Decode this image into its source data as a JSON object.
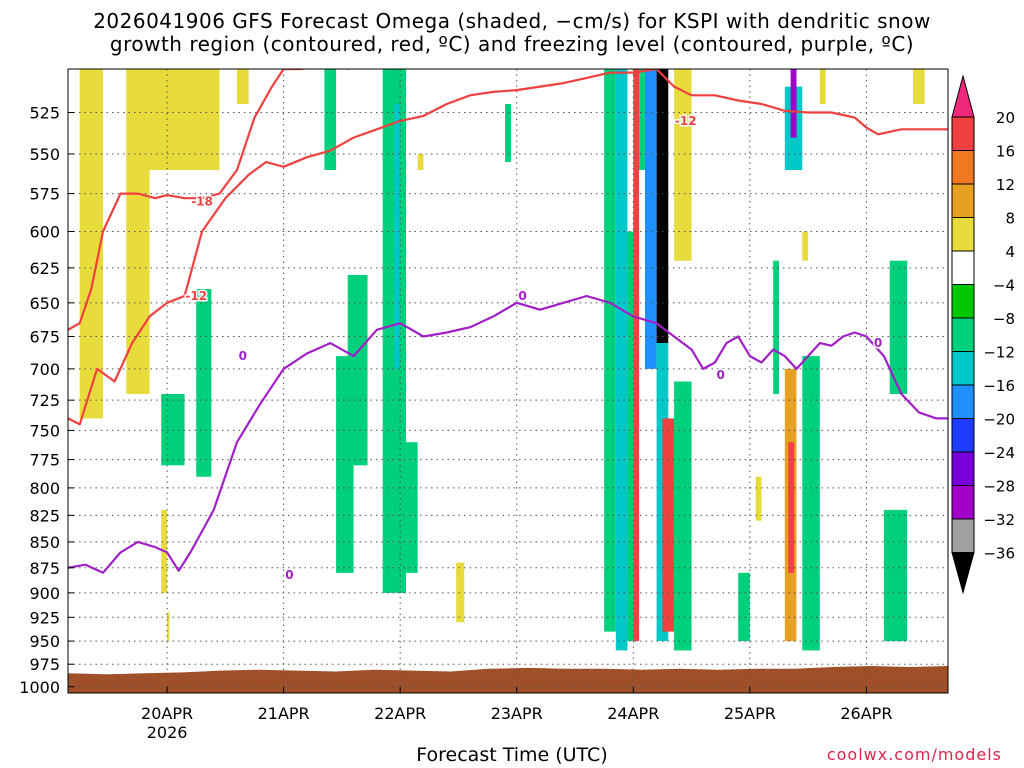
{
  "title_line1": "2026041906 GFS Forecast Omega (shaded, −cm/s) for KSPI with dendritic snow",
  "title_line2": "growth region (contoured, red, ºC) and freezing level (contoured, purple, ºC)",
  "xlabel": "Forecast Time (UTC)",
  "credit": "coolwx.com/models",
  "colors": {
    "freezing_line": "#a020c8",
    "dgz_line": "#f04040",
    "ground": "#a05028",
    "credit": "#e0244c"
  },
  "colorbar": {
    "ticks": [
      "20",
      "16",
      "12",
      "8",
      "4",
      "−4",
      "−8",
      "−12",
      "−16",
      "−20",
      "−24",
      "−28",
      "−32",
      "−36"
    ],
    "colors": [
      "#f0287c",
      "#f04040",
      "#f07820",
      "#e8a020",
      "#e8dc3c",
      "#ffffff",
      "#00c800",
      "#00d07c",
      "#00c8c8",
      "#1e90ff",
      "#1e3cff",
      "#7800dc",
      "#a000c8",
      "#a0a0a0",
      "#000000"
    ]
  },
  "chart_data": {
    "type": "heatmap",
    "title": "2026041906 GFS Forecast Omega (shaded, −cm/s) for KSPI with dendritic snow growth region (contoured, red, ºC) and freezing level (contoured, purple, ºC)",
    "xlabel": "Forecast Time (UTC)",
    "ylabel": "",
    "x_ticks": [
      "20APR",
      "21APR",
      "22APR",
      "23APR",
      "24APR",
      "25APR",
      "26APR"
    ],
    "x_year_label": "2026",
    "x_range_days": [
      -0.85,
      6.7
    ],
    "y_ticks": [
      525,
      550,
      575,
      600,
      625,
      650,
      675,
      700,
      725,
      750,
      775,
      800,
      825,
      850,
      875,
      900,
      925,
      950,
      975,
      1000
    ],
    "y_range_hpa": [
      500,
      1007
    ],
    "y_scale": "log-pressure, inverted",
    "grid": true,
    "shading_values": [
      20,
      16,
      12,
      8,
      4,
      -4,
      -8,
      -12,
      -16,
      -20,
      -24,
      -28,
      -32,
      -36
    ],
    "omega_regions": [
      {
        "t0": -0.75,
        "t1": -0.55,
        "p0": 500,
        "p1": 740,
        "v": 5
      },
      {
        "t0": -0.35,
        "t1": -0.15,
        "p0": 500,
        "p1": 720,
        "v": 6
      },
      {
        "t0": -0.25,
        "t1": 0.45,
        "p0": 500,
        "p1": 560,
        "v": 5
      },
      {
        "t0": -0.05,
        "t1": 0.0,
        "p0": 820,
        "p1": 900,
        "v": 5
      },
      {
        "t0": 0.0,
        "t1": 0.02,
        "p0": 920,
        "p1": 950,
        "v": 5
      },
      {
        "t0": -0.05,
        "t1": 0.15,
        "p0": 720,
        "p1": 780,
        "v": -9
      },
      {
        "t0": 0.25,
        "t1": 0.38,
        "p0": 640,
        "p1": 790,
        "v": -9
      },
      {
        "t0": 0.6,
        "t1": 0.7,
        "p0": 500,
        "p1": 520,
        "v": 5
      },
      {
        "t0": 1.35,
        "t1": 1.45,
        "p0": 500,
        "p1": 560,
        "v": -9
      },
      {
        "t0": 1.45,
        "t1": 1.6,
        "p0": 690,
        "p1": 880,
        "v": -9
      },
      {
        "t0": 1.55,
        "t1": 1.72,
        "p0": 630,
        "p1": 780,
        "v": -9
      },
      {
        "t0": 1.85,
        "t1": 2.05,
        "p0": 500,
        "p1": 900,
        "v": -8
      },
      {
        "t0": 1.95,
        "t1": 2.0,
        "p0": 520,
        "p1": 700,
        "v": -14
      },
      {
        "t0": 2.05,
        "t1": 2.15,
        "p0": 760,
        "p1": 880,
        "v": -9
      },
      {
        "t0": 2.15,
        "t1": 2.2,
        "p0": 550,
        "p1": 560,
        "v": 5
      },
      {
        "t0": 2.48,
        "t1": 2.55,
        "p0": 870,
        "p1": 930,
        "v": 5
      },
      {
        "t0": 2.9,
        "t1": 2.95,
        "p0": 520,
        "p1": 555,
        "v": -9
      },
      {
        "t0": 3.75,
        "t1": 3.85,
        "p0": 500,
        "p1": 940,
        "v": -9
      },
      {
        "t0": 3.85,
        "t1": 3.95,
        "p0": 500,
        "p1": 960,
        "v": -14
      },
      {
        "t0": 3.95,
        "t1": 4.0,
        "p0": 600,
        "p1": 950,
        "v": -9
      },
      {
        "t0": 4.0,
        "t1": 4.05,
        "p0": 500,
        "p1": 950,
        "v": 18
      },
      {
        "t0": 4.05,
        "t1": 4.1,
        "p0": 500,
        "p1": 560,
        "v": -9
      },
      {
        "t0": 4.1,
        "t1": 4.2,
        "p0": 500,
        "p1": 700,
        "v": -18
      },
      {
        "t0": 4.2,
        "t1": 4.3,
        "p0": 500,
        "p1": 680,
        "v": -40
      },
      {
        "t0": 4.2,
        "t1": 4.3,
        "p0": 680,
        "p1": 950,
        "v": -14
      },
      {
        "t0": 4.25,
        "t1": 4.35,
        "p0": 740,
        "p1": 940,
        "v": 18
      },
      {
        "t0": 4.35,
        "t1": 4.5,
        "p0": 710,
        "p1": 960,
        "v": -9
      },
      {
        "t0": 4.35,
        "t1": 4.5,
        "p0": 500,
        "p1": 620,
        "v": 5
      },
      {
        "t0": 4.9,
        "t1": 5.0,
        "p0": 880,
        "p1": 950,
        "v": -9
      },
      {
        "t0": 5.05,
        "t1": 5.1,
        "p0": 790,
        "p1": 830,
        "v": 5
      },
      {
        "t0": 5.2,
        "t1": 5.25,
        "p0": 620,
        "p1": 720,
        "v": -9
      },
      {
        "t0": 5.3,
        "t1": 5.45,
        "p0": 510,
        "p1": 560,
        "v": -14
      },
      {
        "t0": 5.35,
        "t1": 5.4,
        "p0": 500,
        "p1": 540,
        "v": -28
      },
      {
        "t0": 5.3,
        "t1": 5.4,
        "p0": 700,
        "p1": 950,
        "v": 10
      },
      {
        "t0": 5.33,
        "t1": 5.38,
        "p0": 760,
        "p1": 880,
        "v": 18
      },
      {
        "t0": 5.45,
        "t1": 5.6,
        "p0": 690,
        "p1": 960,
        "v": -9
      },
      {
        "t0": 5.45,
        "t1": 5.5,
        "p0": 600,
        "p1": 620,
        "v": 5
      },
      {
        "t0": 5.6,
        "t1": 5.65,
        "p0": 500,
        "p1": 520,
        "v": 5
      },
      {
        "t0": 6.15,
        "t1": 6.35,
        "p0": 820,
        "p1": 950,
        "v": -9
      },
      {
        "t0": 6.2,
        "t1": 6.35,
        "p0": 620,
        "p1": 720,
        "v": -9
      },
      {
        "t0": 6.4,
        "t1": 6.5,
        "p0": 500,
        "p1": 520,
        "v": 5
      }
    ],
    "contours": [
      {
        "name": "freezing level",
        "level": "0",
        "color": "#a020c8",
        "label_at": [
          [
            0.65,
            690
          ],
          [
            1.05,
            882
          ],
          [
            4.75,
            705
          ],
          [
            6.1,
            680
          ],
          [
            3.05,
            645
          ]
        ],
        "t": [
          -0.85,
          -0.7,
          -0.55,
          -0.4,
          -0.25,
          -0.1,
          0.0,
          0.1,
          0.2,
          0.3,
          0.4,
          0.6,
          0.8,
          1.0,
          1.2,
          1.4,
          1.6,
          1.8,
          2.0,
          2.2,
          2.4,
          2.6,
          2.8,
          3.0,
          3.2,
          3.4,
          3.6,
          3.8,
          4.0,
          4.2,
          4.35,
          4.5,
          4.6,
          4.7,
          4.8,
          4.9,
          5.0,
          5.1,
          5.2,
          5.3,
          5.4,
          5.5,
          5.6,
          5.7,
          5.8,
          5.9,
          6.0,
          6.15,
          6.3,
          6.45,
          6.6,
          6.7
        ],
        "p": [
          875,
          872,
          880,
          860,
          850,
          855,
          860,
          878,
          860,
          840,
          820,
          760,
          728,
          700,
          688,
          680,
          690,
          670,
          665,
          675,
          672,
          668,
          660,
          650,
          655,
          650,
          645,
          650,
          660,
          665,
          675,
          685,
          700,
          695,
          680,
          675,
          690,
          695,
          685,
          690,
          700,
          690,
          680,
          682,
          675,
          672,
          675,
          690,
          720,
          735,
          740,
          740
        ]
      },
      {
        "name": "dendritic growth zone lower",
        "level": "-12",
        "color": "#f04040",
        "label_at": [
          [
            4.45,
            530
          ],
          [
            0.25,
            645
          ]
        ],
        "t": [
          -0.85,
          -0.75,
          -0.6,
          -0.45,
          -0.3,
          -0.15,
          0.0,
          0.15,
          0.3,
          0.5,
          0.7,
          0.85,
          1.0,
          1.2,
          1.4,
          1.6,
          1.8,
          2.0,
          2.2,
          2.4,
          2.6,
          2.8,
          3.0,
          3.2,
          3.4,
          3.6,
          3.8,
          4.0,
          4.2,
          4.35,
          4.5,
          4.7,
          4.9,
          5.1,
          5.3,
          5.5,
          5.7,
          5.9,
          6.0,
          6.1,
          6.3,
          6.5,
          6.7
        ],
        "p": [
          740,
          745,
          700,
          710,
          680,
          660,
          650,
          645,
          600,
          578,
          563,
          555,
          558,
          552,
          548,
          540,
          535,
          530,
          527,
          520,
          515,
          513,
          512,
          510,
          508,
          505,
          502,
          502,
          500,
          510,
          515,
          515,
          518,
          520,
          524,
          525,
          525,
          528,
          534,
          538,
          535,
          535,
          535
        ]
      },
      {
        "name": "dendritic growth zone upper",
        "level": "-18",
        "color": "#f04040",
        "label_at": [
          [
            0.3,
            580
          ]
        ],
        "t": [
          -0.85,
          -0.75,
          -0.65,
          -0.55,
          -0.4,
          -0.25,
          -0.1,
          0.0,
          0.15,
          0.3,
          0.45,
          0.6,
          0.75,
          0.9,
          1.0,
          1.15,
          1.35,
          1.45,
          1.55,
          1.65,
          1.8,
          1.9,
          2.0
        ],
        "p": [
          670,
          665,
          640,
          600,
          575,
          575,
          578,
          576,
          578,
          578,
          575,
          560,
          528,
          510,
          500,
          500,
          498,
          490,
          500,
          494,
          495,
          492,
          490
        ]
      }
    ],
    "ground_p": [
      985,
      986,
      985,
      984,
      982,
      981,
      982,
      983,
      981,
      982,
      983,
      980,
      979,
      980,
      980,
      981,
      980,
      981,
      980,
      980,
      978,
      977,
      978,
      977
    ]
  }
}
